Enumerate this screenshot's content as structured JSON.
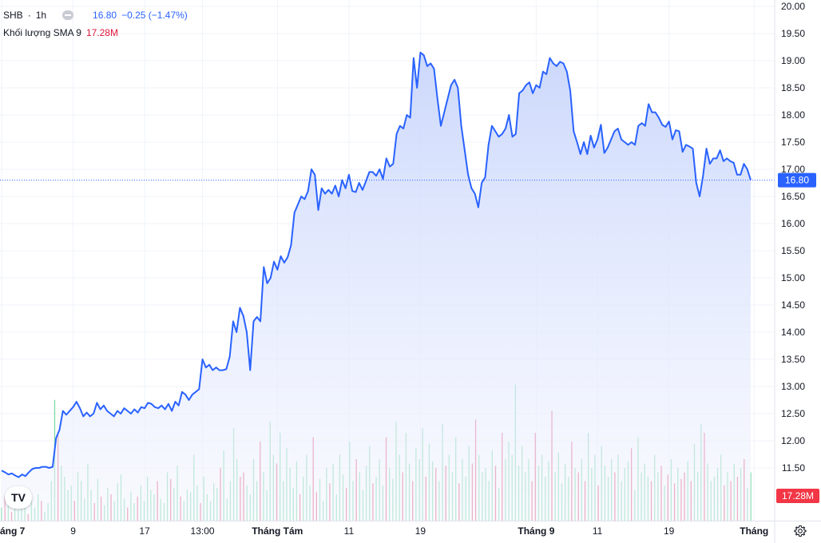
{
  "header": {
    "symbol": "SHB",
    "separator": "·",
    "interval": "1h",
    "last_price": "16.80",
    "change": "−0.25 (−1.47%)",
    "volume_label": "Khối lượng SMA 9",
    "volume_value": "17.28M"
  },
  "badges": {
    "price_badge": "16.80",
    "volume_badge": "17.28M"
  },
  "logo": {
    "text": "TV"
  },
  "colors": {
    "line": "#2962ff",
    "area_top": "#c9d6fc",
    "area_bottom": "#f4f6fe",
    "volume_up": "#7dd9a8",
    "volume_down": "#e35a7d",
    "badge_price": "#2962ff",
    "badge_volume": "#f23645",
    "grid": "#f0f3fa",
    "axis_text": "#131722"
  },
  "icons": {
    "settings": "gear-icon"
  },
  "chart_data": {
    "type": "area",
    "title": "",
    "xlabel": "",
    "ylabel": "",
    "ylim": [
      11.0,
      20.2
    ],
    "grid": true,
    "y_ticks": [
      "20.00",
      "19.50",
      "19.00",
      "18.50",
      "18.00",
      "17.50",
      "17.00",
      "16.50",
      "16.00",
      "15.50",
      "15.00",
      "14.50",
      "14.00",
      "13.50",
      "13.00",
      "12.50",
      "12.00",
      "11.50"
    ],
    "x_ticks": [
      "áng 7",
      "9",
      "17",
      "13:00",
      "Tháng Tám",
      "11",
      "19",
      "Tháng 9",
      "11",
      "19",
      "Tháng"
    ],
    "x_tick_index": [
      0,
      21,
      42,
      59,
      81,
      102,
      123,
      157,
      175,
      196,
      221
    ],
    "last_value": 16.8,
    "series": [
      {
        "values": [
          11.45,
          11.42,
          11.38,
          11.4,
          11.36,
          11.33,
          11.38,
          11.35,
          11.42,
          11.48,
          11.5,
          11.5,
          11.52,
          11.52,
          11.5,
          11.52,
          12.05,
          12.2,
          12.55,
          12.48,
          12.55,
          12.62,
          12.72,
          12.6,
          12.45,
          12.52,
          12.45,
          12.5,
          12.7,
          12.58,
          12.65,
          12.55,
          12.5,
          12.45,
          12.55,
          12.5,
          12.6,
          12.55,
          12.5,
          12.58,
          12.52,
          12.62,
          12.6,
          12.7,
          12.68,
          12.62,
          12.6,
          12.65,
          12.58,
          12.68,
          12.55,
          12.72,
          12.65,
          12.9,
          12.85,
          12.75,
          12.85,
          12.9,
          12.95,
          13.5,
          13.35,
          13.4,
          13.3,
          13.35,
          13.3,
          13.3,
          13.32,
          13.55,
          14.2,
          14.0,
          14.45,
          14.3,
          14.0,
          13.3,
          14.2,
          14.28,
          14.2,
          15.2,
          14.9,
          15.0,
          15.3,
          15.15,
          15.4,
          15.28,
          15.38,
          15.6,
          16.2,
          16.35,
          16.5,
          16.45,
          16.6,
          17.0,
          16.9,
          16.25,
          16.65,
          16.55,
          16.62,
          16.55,
          16.7,
          16.5,
          16.8,
          16.65,
          16.9,
          16.6,
          16.58,
          16.75,
          16.62,
          16.78,
          16.95,
          16.95,
          16.88,
          17.0,
          16.82,
          17.2,
          17.05,
          17.1,
          17.65,
          17.8,
          17.75,
          18.0,
          17.95,
          19.05,
          18.5,
          19.15,
          19.1,
          18.9,
          18.95,
          18.85,
          18.3,
          17.8,
          18.05,
          18.3,
          18.55,
          18.65,
          18.5,
          17.8,
          17.35,
          16.9,
          16.65,
          16.55,
          16.3,
          16.75,
          16.85,
          17.45,
          17.8,
          17.7,
          17.6,
          17.65,
          17.75,
          18.0,
          17.6,
          17.65,
          18.4,
          18.45,
          18.55,
          18.6,
          18.4,
          18.55,
          18.5,
          18.8,
          18.75,
          19.05,
          18.95,
          18.9,
          18.98,
          18.95,
          18.8,
          18.45,
          17.7,
          17.5,
          17.28,
          17.5,
          17.28,
          17.62,
          17.4,
          17.55,
          17.82,
          17.3,
          17.4,
          17.55,
          17.7,
          17.75,
          17.55,
          17.5,
          17.45,
          17.5,
          17.45,
          17.8,
          17.85,
          17.8,
          18.2,
          18.05,
          18.05,
          17.95,
          17.82,
          17.78,
          17.88,
          17.55,
          17.72,
          17.7,
          17.32,
          17.45,
          17.42,
          17.38,
          16.75,
          16.5,
          16.88,
          17.38,
          17.1,
          17.2,
          17.2,
          17.35,
          17.15,
          17.2,
          17.15,
          17.12,
          16.9,
          16.9,
          17.1,
          17.0,
          16.8
        ]
      }
    ],
    "volume": {
      "label": "Khối lượng SMA 9",
      "max": 60,
      "values": [
        6,
        11,
        8,
        4,
        9,
        5,
        13,
        7,
        3,
        10,
        6,
        12,
        9,
        4,
        8,
        18,
        55,
        40,
        25,
        20,
        14,
        16,
        9,
        22,
        18,
        10,
        26,
        14,
        8,
        19,
        11,
        7,
        15,
        12,
        9,
        17,
        21,
        10,
        6,
        13,
        8,
        11,
        16,
        9,
        20,
        14,
        12,
        18,
        10,
        8,
        22,
        19,
        15,
        25,
        11,
        9,
        14,
        13,
        30,
        16,
        8,
        20,
        12,
        9,
        17,
        15,
        24,
        32,
        10,
        18,
        42,
        28,
        20,
        22,
        16,
        12,
        28,
        18,
        36,
        22,
        14,
        45,
        30,
        26,
        40,
        18,
        33,
        24,
        15,
        27,
        12,
        20,
        30,
        16,
        38,
        13,
        19,
        9,
        24,
        17,
        26,
        12,
        30,
        21,
        15,
        36,
        18,
        28,
        22,
        14,
        25,
        34,
        17,
        20,
        28,
        16,
        38,
        24,
        19,
        45,
        30,
        22,
        40,
        26,
        18,
        33,
        28,
        42,
        20,
        35,
        27,
        24,
        18,
        44,
        25,
        30,
        22,
        38,
        17,
        28,
        20,
        34,
        26,
        46,
        30,
        22,
        24,
        18,
        32,
        25,
        15,
        40,
        28,
        36,
        30,
        62,
        25,
        34,
        22,
        28,
        18,
        40,
        25,
        30,
        20,
        27,
        50,
        22,
        31,
        17,
        26,
        20,
        36,
        24,
        22,
        28,
        18,
        40,
        24,
        30,
        16,
        34,
        25,
        20,
        28,
        22,
        30,
        18,
        24,
        27,
        33,
        14,
        38,
        22,
        26,
        20,
        18,
        30,
        22,
        25,
        16,
        21,
        28,
        17,
        24,
        19,
        22,
        27,
        18,
        35,
        22,
        44,
        40,
        26,
        18,
        20,
        24,
        30,
        16,
        22,
        18,
        26,
        20,
        24,
        28,
        15,
        22
      ],
      "down": [
        1,
        3,
        8,
        12,
        17,
        22,
        28,
        30,
        33,
        38,
        41,
        47,
        51,
        54,
        60,
        66,
        72,
        73,
        78,
        83,
        90,
        94,
        95,
        99,
        104,
        107,
        112,
        116,
        121,
        124,
        128,
        131,
        134,
        138,
        142,
        143,
        149,
        151,
        160,
        161,
        166,
        172,
        174,
        176,
        180,
        185,
        190,
        196,
        199,
        201,
        203,
        205,
        206,
        208,
        212,
        218,
        220,
        222,
        224
      ]
    }
  }
}
